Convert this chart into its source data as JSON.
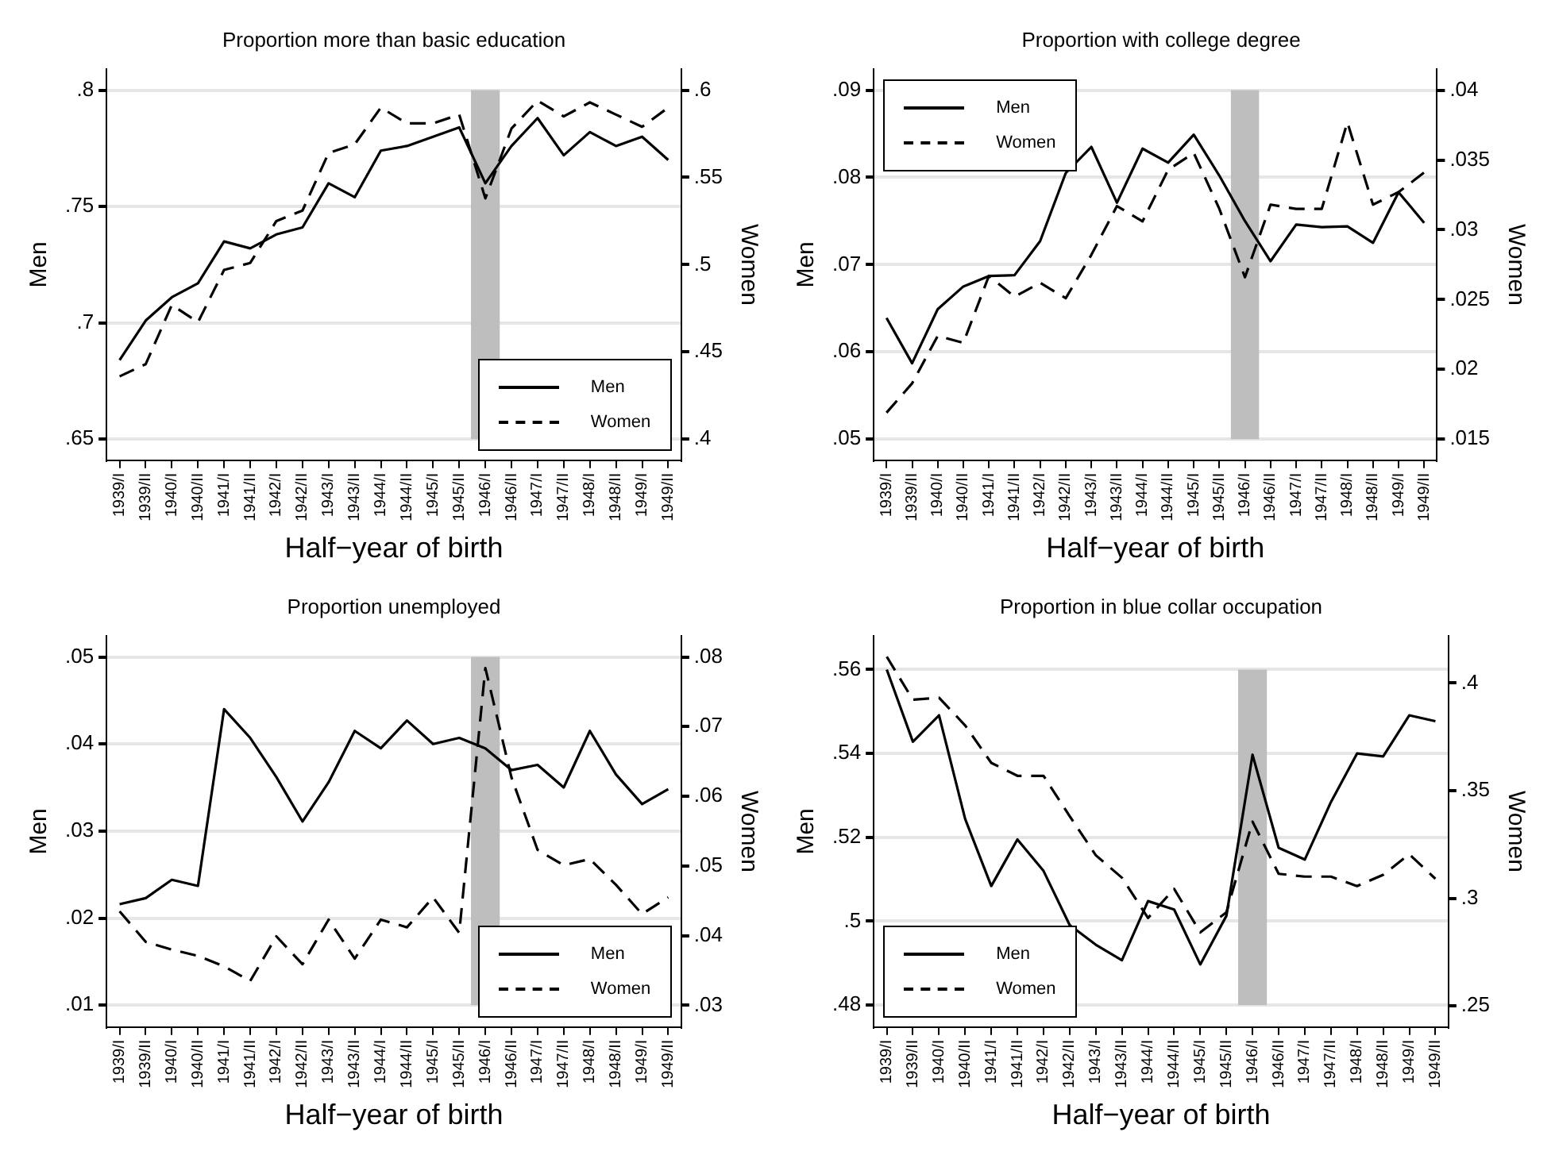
{
  "chart_data": [
    {
      "type": "line",
      "title": "Proportion more than basic education",
      "xlabel": "Half−year of birth",
      "ylabel": "Men",
      "y2label": "Women",
      "categories": [
        "1939/I",
        "1939/II",
        "1940/I",
        "1940/II",
        "1941/I",
        "1941/II",
        "1942/I",
        "1942/II",
        "1943/I",
        "1943/II",
        "1944/I",
        "1944/II",
        "1945/I",
        "1945/II",
        "1946/I",
        "1946/II",
        "1947/I",
        "1947/II",
        "1948/I",
        "1948/II",
        "1949/I",
        "1949/II"
      ],
      "series": [
        {
          "name": "Men",
          "color": "#000000",
          "line_style": "solid",
          "values": [
            0.684,
            0.701,
            0.711,
            0.717,
            0.735,
            0.732,
            0.738,
            0.741,
            0.76,
            0.754,
            0.774,
            0.776,
            0.78,
            0.784,
            0.76,
            0.776,
            0.788,
            0.772,
            0.782,
            0.776,
            0.78,
            0.77
          ]
        },
        {
          "name": "Women",
          "color": "#000000",
          "line_style": "dashed",
          "axis": "y2",
          "values": [
            0.436,
            0.443,
            0.477,
            0.467,
            0.497,
            0.501,
            0.525,
            0.531,
            0.564,
            0.569,
            0.59,
            0.581,
            0.581,
            0.586,
            0.538,
            0.578,
            0.594,
            0.585,
            0.593,
            0.586,
            0.579,
            0.59
          ]
        }
      ],
      "ylim": [
        0.641,
        0.809
      ],
      "yticks": [
        {
          "value": 0.65,
          "label": ".65"
        },
        {
          "value": 0.7,
          "label": ".7"
        },
        {
          "value": 0.75,
          "label": ".75"
        },
        {
          "value": 0.8,
          "label": ".8"
        }
      ],
      "y2lim": [
        0.388,
        0.612
      ],
      "y2ticks": [
        {
          "value": 0.4,
          "label": ".4"
        },
        {
          "value": 0.45,
          "label": ".45"
        },
        {
          "value": 0.5,
          "label": ".5"
        },
        {
          "value": 0.55,
          "label": ".55"
        },
        {
          "value": 0.6,
          "label": ".6"
        }
      ],
      "grid": "y",
      "legend": "bottom right",
      "bands": [
        {
          "axis": "x",
          "from": "1946/I",
          "to": "1946/I",
          "color": "#bebebe"
        }
      ]
    },
    {
      "type": "line",
      "title": "Proportion with college degree",
      "xlabel": "Half−year of birth",
      "ylabel": "Men",
      "y2label": "Women",
      "categories": [
        "1939/I",
        "1939/II",
        "1940/I",
        "1940/II",
        "1941/I",
        "1941/II",
        "1942/I",
        "1942/II",
        "1943/I",
        "1943/II",
        "1944/I",
        "1944/II",
        "1945/I",
        "1945/II",
        "1946/I",
        "1946/II",
        "1947/I",
        "1947/II",
        "1948/I",
        "1948/II",
        "1949/I",
        "1949/II"
      ],
      "series": [
        {
          "name": "Men",
          "color": "#000000",
          "line_style": "solid",
          "values": [
            0.0639,
            0.0587,
            0.0649,
            0.0675,
            0.0687,
            0.0688,
            0.0727,
            0.0805,
            0.0835,
            0.0771,
            0.0833,
            0.0817,
            0.0849,
            0.0802,
            0.075,
            0.0704,
            0.0746,
            0.0743,
            0.0744,
            0.0725,
            0.0783,
            0.0748
          ]
        },
        {
          "name": "Women",
          "color": "#000000",
          "line_style": "dashed",
          "axis": "y2",
          "values": [
            0.0169,
            0.019,
            0.0224,
            0.0219,
            0.0267,
            0.0252,
            0.0262,
            0.0251,
            0.0282,
            0.0317,
            0.0306,
            0.0343,
            0.0355,
            0.0315,
            0.0266,
            0.0318,
            0.0315,
            0.0315,
            0.0377,
            0.0318,
            0.0327,
            0.0341
          ]
        }
      ],
      "ylim": [
        0.0476,
        0.0924
      ],
      "yticks": [
        {
          "value": 0.05,
          "label": ".05"
        },
        {
          "value": 0.06,
          "label": ".06"
        },
        {
          "value": 0.07,
          "label": ".07"
        },
        {
          "value": 0.08,
          "label": ".08"
        },
        {
          "value": 0.09,
          "label": ".09"
        }
      ],
      "y2lim": [
        0.0135,
        0.0415
      ],
      "y2ticks": [
        {
          "value": 0.015,
          "label": ".015"
        },
        {
          "value": 0.02,
          "label": ".02"
        },
        {
          "value": 0.025,
          "label": ".025"
        },
        {
          "value": 0.03,
          "label": ".03"
        },
        {
          "value": 0.035,
          "label": ".035"
        },
        {
          "value": 0.04,
          "label": ".04"
        }
      ],
      "grid": "y",
      "legend": "top left",
      "bands": [
        {
          "axis": "x",
          "from": "1946/I",
          "to": "1946/I",
          "color": "#bebebe"
        }
      ]
    },
    {
      "type": "line",
      "title": "Proportion unemployed",
      "xlabel": "Half−year of birth",
      "ylabel": "Men",
      "y2label": "Women",
      "categories": [
        "1939/I",
        "1939/II",
        "1940/I",
        "1940/II",
        "1941/I",
        "1941/II",
        "1942/I",
        "1942/II",
        "1943/I",
        "1943/II",
        "1944/I",
        "1944/II",
        "1945/I",
        "1945/II",
        "1946/I",
        "1946/II",
        "1947/I",
        "1947/II",
        "1948/I",
        "1948/II",
        "1949/I",
        "1949/II"
      ],
      "series": [
        {
          "name": "Men",
          "color": "#000000",
          "line_style": "solid",
          "values": [
            0.0216,
            0.0223,
            0.0244,
            0.0237,
            0.044,
            0.0407,
            0.0362,
            0.0311,
            0.0356,
            0.0415,
            0.0395,
            0.0427,
            0.04,
            0.0407,
            0.0395,
            0.037,
            0.0376,
            0.035,
            0.0415,
            0.0365,
            0.0331,
            0.0348
          ]
        },
        {
          "name": "Women",
          "color": "#000000",
          "line_style": "dashed",
          "axis": "y2",
          "values": [
            0.0435,
            0.0391,
            0.038,
            0.0371,
            0.0356,
            0.0335,
            0.0399,
            0.0359,
            0.0423,
            0.0367,
            0.0423,
            0.0412,
            0.0455,
            0.0404,
            0.0784,
            0.0627,
            0.0523,
            0.0501,
            0.051,
            0.0473,
            0.0431,
            0.0455
          ]
        }
      ],
      "ylim": [
        0.0075,
        0.0524
      ],
      "yticks": [
        {
          "value": 0.01,
          "label": ".01"
        },
        {
          "value": 0.02,
          "label": ".02"
        },
        {
          "value": 0.03,
          "label": ".03"
        },
        {
          "value": 0.04,
          "label": ".04"
        },
        {
          "value": 0.05,
          "label": ".05"
        }
      ],
      "y2lim": [
        0.0269,
        0.083
      ],
      "y2ticks": [
        {
          "value": 0.03,
          "label": ".03"
        },
        {
          "value": 0.04,
          "label": ".04"
        },
        {
          "value": 0.05,
          "label": ".05"
        },
        {
          "value": 0.06,
          "label": ".06"
        },
        {
          "value": 0.07,
          "label": ".07"
        },
        {
          "value": 0.08,
          "label": ".08"
        }
      ],
      "grid": "y",
      "legend": "bottom right",
      "bands": [
        {
          "axis": "x",
          "from": "1946/I",
          "to": "1946/I",
          "color": "#bebebe"
        }
      ]
    },
    {
      "type": "line",
      "title": "Proportion in blue collar occupation",
      "xlabel": "Half−year of birth",
      "ylabel": "Men",
      "y2label": "Women",
      "categories": [
        "1939/I",
        "1939/II",
        "1940/I",
        "1940/II",
        "1941/I",
        "1941/II",
        "1942/I",
        "1942/II",
        "1943/I",
        "1943/II",
        "1944/I",
        "1944/II",
        "1945/I",
        "1945/II",
        "1946/I",
        "1946/II",
        "1947/I",
        "1947/II",
        "1948/I",
        "1948/II",
        "1949/I",
        "1949/II"
      ],
      "series": [
        {
          "name": "Men",
          "color": "#000000",
          "line_style": "solid",
          "values": [
            0.56,
            0.5428,
            0.5491,
            0.5244,
            0.5084,
            0.5195,
            0.512,
            0.4991,
            0.4944,
            0.4907,
            0.5048,
            0.5028,
            0.4897,
            0.5013,
            0.5397,
            0.5175,
            0.5147,
            0.5284,
            0.54,
            0.5393,
            0.5491,
            0.5477
          ]
        },
        {
          "name": "Women",
          "color": "#000000",
          "line_style": "dashed",
          "axis": "y2",
          "values": [
            0.4122,
            0.3922,
            0.3932,
            0.3803,
            0.3629,
            0.3569,
            0.3569,
            0.3382,
            0.32,
            0.3096,
            0.2909,
            0.3044,
            0.2842,
            0.2935,
            0.3356,
            0.3114,
            0.3101,
            0.3101,
            0.3057,
            0.3109,
            0.3205,
            0.3091
          ]
        }
      ],
      "ylim": [
        0.4748,
        0.568
      ],
      "yticks": [
        {
          "value": 0.48,
          "label": ".48"
        },
        {
          "value": 0.5,
          "label": ".5"
        },
        {
          "value": 0.52,
          "label": ".52"
        },
        {
          "value": 0.54,
          "label": ".54"
        },
        {
          "value": 0.56,
          "label": ".56"
        }
      ],
      "y2lim": [
        0.2403,
        0.4218
      ],
      "y2ticks": [
        {
          "value": 0.25,
          "label": ".25"
        },
        {
          "value": 0.3,
          "label": ".3"
        },
        {
          "value": 0.35,
          "label": ".35"
        },
        {
          "value": 0.4,
          "label": ".4"
        }
      ],
      "grid": "y",
      "legend": "bottom left",
      "bands": [
        {
          "axis": "x",
          "from": "1946/I",
          "to": "1946/I",
          "color": "#bebebe"
        }
      ]
    }
  ]
}
